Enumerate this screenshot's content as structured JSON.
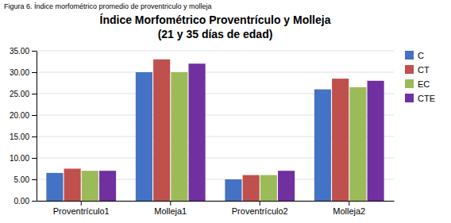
{
  "chart_data": {
    "type": "bar",
    "title": "Índice Morfométrico Proventrículo y Molleja",
    "subtitle": "(21 y 35 días de edad)",
    "annotations": [
      "Figura 6. Índice morfométrico promedio de proventriculo y molleja"
    ],
    "categories": [
      "Proventrículo1",
      "Molleja1",
      "Proventrículo2",
      "Molleja2"
    ],
    "series": [
      {
        "name": "C",
        "color": "#4472C4",
        "values": [
          6.5,
          30.0,
          5.0,
          26.0
        ]
      },
      {
        "name": "CT",
        "color": "#C0504D",
        "values": [
          7.5,
          33.0,
          6.0,
          28.5
        ]
      },
      {
        "name": "EC",
        "color": "#9BBB59",
        "values": [
          7.0,
          30.0,
          6.0,
          26.5
        ]
      },
      {
        "name": "CTE",
        "color": "#7030A0",
        "values": [
          7.0,
          32.0,
          7.0,
          28.0
        ]
      }
    ],
    "ylim": [
      0,
      35
    ],
    "yticks": [
      {
        "value": 0,
        "label": "0.00"
      },
      {
        "value": 5,
        "label": "5.00"
      },
      {
        "value": 10,
        "label": "10.00"
      },
      {
        "value": 15,
        "label": "15.00"
      },
      {
        "value": 20,
        "label": "20.00"
      },
      {
        "value": 25,
        "label": "25.00"
      },
      {
        "value": 30,
        "label": "30.00"
      },
      {
        "value": 35,
        "label": "35.00"
      }
    ],
    "grid": true,
    "legend": "right"
  }
}
